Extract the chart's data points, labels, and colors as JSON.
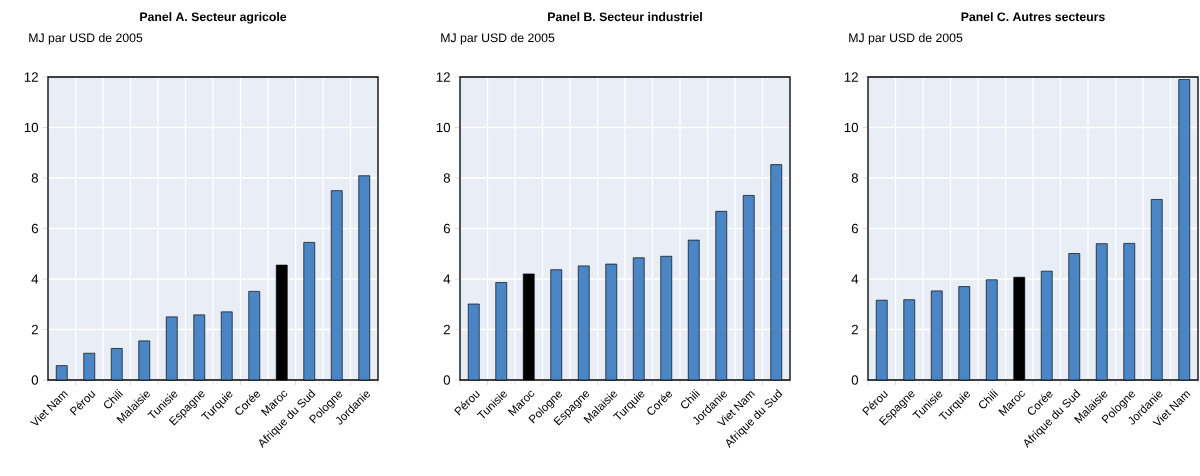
{
  "chart_data": [
    {
      "type": "bar",
      "title": "Panel A. Secteur agricole",
      "ylabel": "MJ par USD de 2005",
      "categories": [
        "Viet Nam",
        "Pérou",
        "Chili",
        "Malaisie",
        "Tunisie",
        "Espagne",
        "Turquie",
        "Corée",
        "Maroc",
        "Afrique du Sud",
        "Pologne",
        "Jordanie"
      ],
      "values": [
        0.57,
        1.06,
        1.25,
        1.55,
        2.5,
        2.58,
        2.7,
        3.51,
        4.55,
        5.45,
        7.5,
        8.09
      ],
      "colors": [
        "#4a86c5",
        "#4a86c5",
        "#4a86c5",
        "#4a86c5",
        "#4a86c5",
        "#4a86c5",
        "#4a86c5",
        "#4a86c5",
        "#000000",
        "#4a86c5",
        "#4a86c5",
        "#4a86c5"
      ],
      "ylim": [
        0,
        12
      ],
      "yticks": [
        0,
        2,
        4,
        6,
        8,
        10,
        12
      ],
      "grid": true
    },
    {
      "type": "bar",
      "title": "Panel B. Secteur industriel",
      "ylabel": "MJ par USD de 2005",
      "categories": [
        "Pérou",
        "Tunisie",
        "Maroc",
        "Pologne",
        "Espagne",
        "Malaisie",
        "Turquie",
        "Corée",
        "Chili",
        "Jordanie",
        "Viet Nam",
        "Afrique du Sud"
      ],
      "values": [
        3.01,
        3.86,
        4.2,
        4.37,
        4.52,
        4.59,
        4.84,
        4.9,
        5.54,
        6.68,
        7.31,
        8.53
      ],
      "colors": [
        "#4a86c5",
        "#4a86c5",
        "#000000",
        "#4a86c5",
        "#4a86c5",
        "#4a86c5",
        "#4a86c5",
        "#4a86c5",
        "#4a86c5",
        "#4a86c5",
        "#4a86c5",
        "#4a86c5"
      ],
      "ylim": [
        0,
        12
      ],
      "yticks": [
        0,
        2,
        4,
        6,
        8,
        10,
        12
      ],
      "grid": true
    },
    {
      "type": "bar",
      "title": "Panel C. Autres secteurs",
      "ylabel": "MJ par USD de 2005",
      "categories": [
        "Pérou",
        "Espagne",
        "Tunisie",
        "Turquie",
        "Chili",
        "Maroc",
        "Corée",
        "Afrique du Sud",
        "Malaisie",
        "Pologne",
        "Jordanie",
        "Viet Nam"
      ],
      "values": [
        3.16,
        3.18,
        3.53,
        3.7,
        3.97,
        4.07,
        4.31,
        5.01,
        5.4,
        5.41,
        7.15,
        11.9
      ],
      "colors": [
        "#4a86c5",
        "#4a86c5",
        "#4a86c5",
        "#4a86c5",
        "#4a86c5",
        "#000000",
        "#4a86c5",
        "#4a86c5",
        "#4a86c5",
        "#4a86c5",
        "#4a86c5",
        "#4a86c5"
      ],
      "ylim": [
        0,
        12
      ],
      "yticks": [
        0,
        2,
        4,
        6,
        8,
        10,
        12
      ],
      "grid": true
    }
  ]
}
